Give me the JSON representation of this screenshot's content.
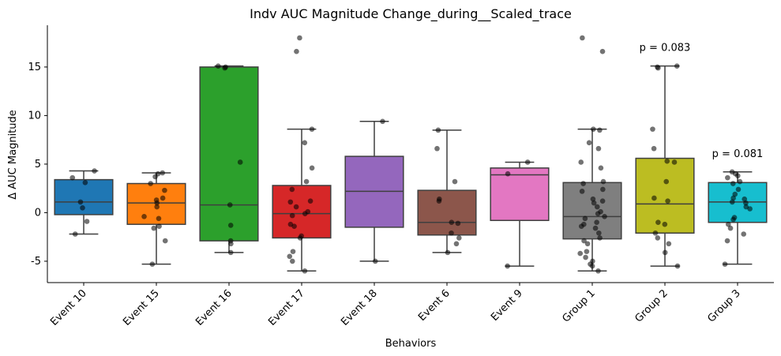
{
  "chart_data": {
    "type": "box",
    "title": "Indv AUC Magnitude Change_during__Scaled_trace",
    "xlabel": "Behaviors",
    "ylabel": "Δ AUC Magnitude",
    "ylim": [
      -7.2,
      19.3
    ],
    "yticks": [
      -5,
      0,
      5,
      10,
      15
    ],
    "categories": [
      "Event 10",
      "Event 15",
      "Event 16",
      "Event 17",
      "Event 18",
      "Event 6",
      "Event 9",
      "Group 1",
      "Group 2",
      "Group 3"
    ],
    "boxes": [
      {
        "color": "#1f77b4",
        "q1": -0.2,
        "median": 1.1,
        "q3": 3.4,
        "whisker_low": -2.2,
        "whisker_high": 4.3,
        "points": [
          4.3,
          3.6,
          3.1,
          1.1,
          0.5,
          -0.9,
          -2.2
        ]
      },
      {
        "color": "#ff7f0e",
        "q1": -1.2,
        "median": 1.0,
        "q3": 3.0,
        "whisker_low": -5.3,
        "whisker_high": 4.1,
        "points": [
          4.1,
          4.0,
          3.7,
          3.0,
          2.3,
          1.5,
          1.3,
          1.0,
          0.6,
          -0.4,
          -0.6,
          -1.4,
          -1.6,
          -2.9,
          -5.3
        ]
      },
      {
        "color": "#2ca02c",
        "q1": -2.9,
        "median": 0.8,
        "q3": 15.0,
        "whisker_low": -4.1,
        "whisker_high": 15.1,
        "points": [
          15.1,
          15.0,
          14.9,
          5.2,
          0.8,
          -1.3,
          -2.9,
          -3.2,
          -4.1
        ]
      },
      {
        "color": "#d62728",
        "q1": -2.6,
        "median": -0.1,
        "q3": 2.8,
        "whisker_low": -6.0,
        "whisker_high": 8.6,
        "points": [
          18.0,
          16.6,
          8.6,
          7.2,
          4.6,
          3.2,
          2.4,
          1.2,
          1.1,
          0.6,
          0.1,
          -0.1,
          -0.3,
          -1.2,
          -1.4,
          -2.4,
          -2.6,
          -4.0,
          -4.5,
          -5.0,
          -6.0
        ]
      },
      {
        "color": "#9467bd",
        "q1": -1.5,
        "median": 2.2,
        "q3": 5.8,
        "whisker_low": -5.0,
        "whisker_high": 9.4,
        "points": [
          9.4,
          -5.0
        ]
      },
      {
        "color": "#8c564b",
        "q1": -2.3,
        "median": -1.0,
        "q3": 2.3,
        "whisker_low": -4.1,
        "whisker_high": 8.5,
        "points": [
          8.5,
          6.6,
          3.2,
          1.4,
          1.2,
          -1.0,
          -1.1,
          -2.1,
          -2.6,
          -3.2,
          -4.1
        ]
      },
      {
        "color": "#e377c2",
        "q1": -0.8,
        "median": 3.9,
        "q3": 4.6,
        "whisker_low": -5.5,
        "whisker_high": 5.2,
        "points": [
          5.2,
          4.0,
          -5.5
        ]
      },
      {
        "color": "#7f7f7f",
        "q1": -2.7,
        "median": -0.4,
        "q3": 3.1,
        "whisker_low": -6.0,
        "whisker_high": 8.6,
        "points": [
          18.0,
          16.6,
          8.6,
          8.5,
          7.2,
          6.6,
          5.2,
          4.6,
          3.2,
          3.0,
          2.4,
          2.2,
          1.4,
          1.2,
          1.0,
          0.6,
          0.1,
          -0.1,
          -0.4,
          -0.6,
          -1.0,
          -1.2,
          -1.4,
          -1.6,
          -2.1,
          -2.6,
          -2.9,
          -3.2,
          -4.0,
          -4.2,
          -4.6,
          -5.0,
          -5.3,
          -5.5,
          -6.0
        ]
      },
      {
        "color": "#bcbd22",
        "q1": -2.1,
        "median": 0.9,
        "q3": 5.6,
        "whisker_low": -5.5,
        "whisker_high": 15.1,
        "points": [
          15.1,
          15.0,
          14.9,
          8.6,
          6.6,
          5.3,
          5.2,
          3.2,
          1.5,
          1.2,
          -1.0,
          -1.2,
          -2.1,
          -2.6,
          -3.2,
          -4.1,
          -5.5
        ],
        "annotation": "p = 0.083"
      },
      {
        "color": "#17becf",
        "q1": -1.0,
        "median": 1.1,
        "q3": 3.1,
        "whisker_low": -5.3,
        "whisker_high": 4.2,
        "points": [
          4.2,
          4.0,
          3.8,
          3.6,
          3.2,
          3.0,
          2.4,
          1.9,
          1.5,
          1.4,
          1.1,
          1.0,
          0.6,
          0.4,
          -0.5,
          -0.7,
          -1.2,
          -1.6,
          -2.2,
          -2.9,
          -5.3
        ],
        "annotation": "p = 0.081"
      }
    ],
    "grid": false,
    "legend": "none"
  }
}
